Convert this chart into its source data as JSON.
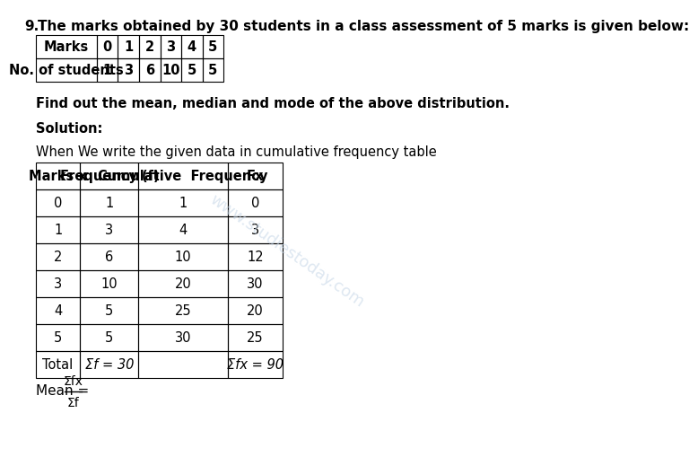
{
  "question_number": "9.",
  "question_text": "The marks obtained by 30 students in a class assessment of 5 marks is given below:",
  "top_table": {
    "headers": [
      "Marks",
      "0",
      "1",
      "2",
      "3",
      "4",
      "5"
    ],
    "row": [
      "No. of students",
      "1",
      "3",
      "6",
      "10",
      "5",
      "5"
    ]
  },
  "bold_text": "Find out the mean, median and mode of the above distribution.",
  "solution_label": "Solution:",
  "intro_text": "When We write the given data in cumulative frequency table",
  "main_table": {
    "headers": [
      "Marks x",
      "Frequency (f)",
      "Cumulative  Frequency",
      "Fx"
    ],
    "rows": [
      [
        "0",
        "1",
        "1",
        "0"
      ],
      [
        "1",
        "3",
        "4",
        "3"
      ],
      [
        "2",
        "6",
        "10",
        "12"
      ],
      [
        "3",
        "10",
        "20",
        "30"
      ],
      [
        "4",
        "5",
        "25",
        "20"
      ],
      [
        "5",
        "5",
        "30",
        "25"
      ],
      [
        "Total",
        "Σf = 30",
        "",
        "Σfx = 90"
      ]
    ]
  },
  "mean_label": "Mean = ",
  "mean_fraction_num": "Σfx",
  "mean_fraction_den": "Σf",
  "bg_color": "#ffffff",
  "text_color": "#000000",
  "watermark_color": "#c8d8e8"
}
